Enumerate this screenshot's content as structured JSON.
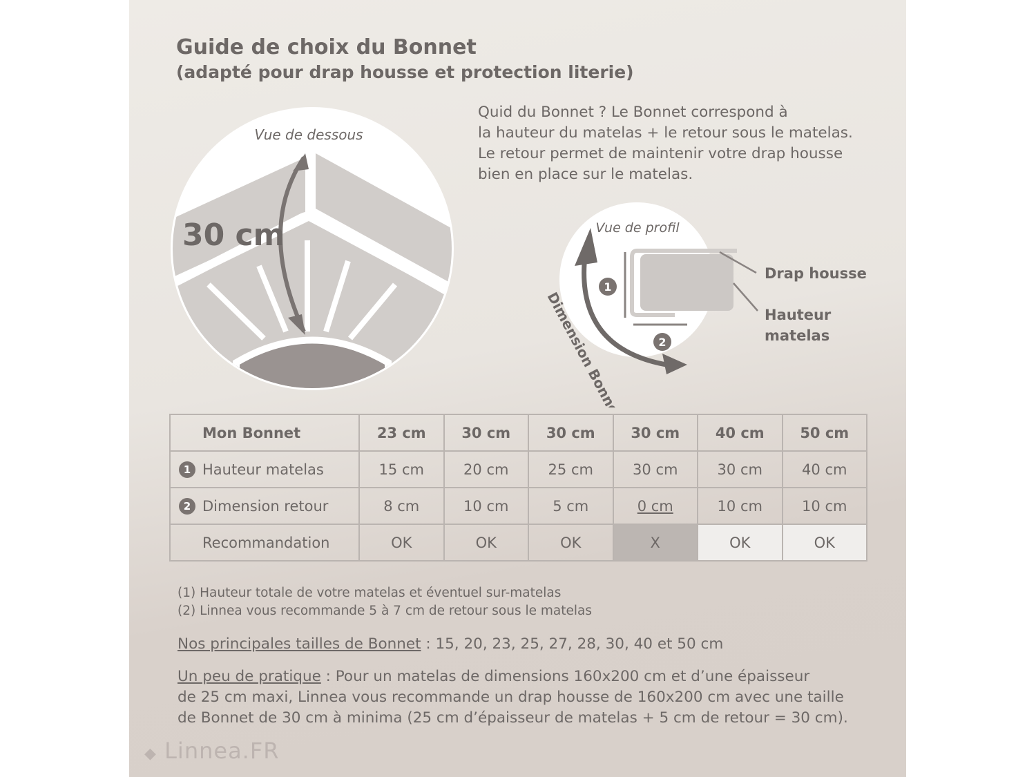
{
  "title": "Guide de choix du Bonnet",
  "subtitle": "(adapté pour drap housse et protection literie)",
  "intro": [
    "Quid du Bonnet ? Le Bonnet correspond à",
    "la hauteur du matelas + le retour sous le matelas.",
    "Le retour permet de maintenir votre drap housse",
    "bien en place sur le matelas."
  ],
  "diagram_bottom": {
    "caption": "Vue de dessous",
    "measure": "30 cm"
  },
  "diagram_profile": {
    "caption": "Vue de profil",
    "arc_label": "Dimension Bonnet",
    "label_sheet": "Drap housse",
    "label_height_1": "Hauteur",
    "label_height_2": "matelas",
    "marker_1": "1",
    "marker_2": "2"
  },
  "table": {
    "headers": [
      "Mon Bonnet",
      "23 cm",
      "30 cm",
      "30 cm",
      "30 cm",
      "40 cm",
      "50 cm"
    ],
    "rows": [
      {
        "marker": "1",
        "label": "Hauteur matelas",
        "values": [
          "15 cm",
          "20 cm",
          "25 cm",
          "30 cm",
          "30 cm",
          "40 cm"
        ]
      },
      {
        "marker": "2",
        "label": "Dimension retour",
        "values": [
          "8 cm",
          "10 cm",
          "5 cm",
          "0 cm",
          "10 cm",
          "10 cm"
        ]
      },
      {
        "marker": "",
        "label": "Recommandation",
        "values": [
          "OK",
          "OK",
          "OK",
          "X",
          "OK",
          "OK"
        ]
      }
    ],
    "colors": {
      "rejected": "#bcb6b2",
      "border": "#bab4b0"
    }
  },
  "notes": [
    {
      "num": "(1)",
      "text": "Hauteur totale de votre matelas et éventuel sur-matelas"
    },
    {
      "num": "(2)",
      "text": "Linnea vous recommande 5 à 7 cm de retour sous le matelas"
    }
  ],
  "sizes": {
    "label": "Nos principales tailles de Bonnet",
    "text": " : 15, 20, 23, 25, 27, 28, 30, 40 et 50 cm"
  },
  "practice": {
    "label": "Un peu de pratique",
    "text": " : Pour un matelas de dimensions 160x200 cm et d’une épaisseur",
    "line2": "de 25 cm maxi, Linnea vous recommande un drap housse de 160x200 cm avec une taille",
    "line3": "de Bonnet de 30 cm à minima (25 cm d’épaisseur de matelas + 5 cm de retour = 30 cm)."
  },
  "logo": "Linnea.FR"
}
